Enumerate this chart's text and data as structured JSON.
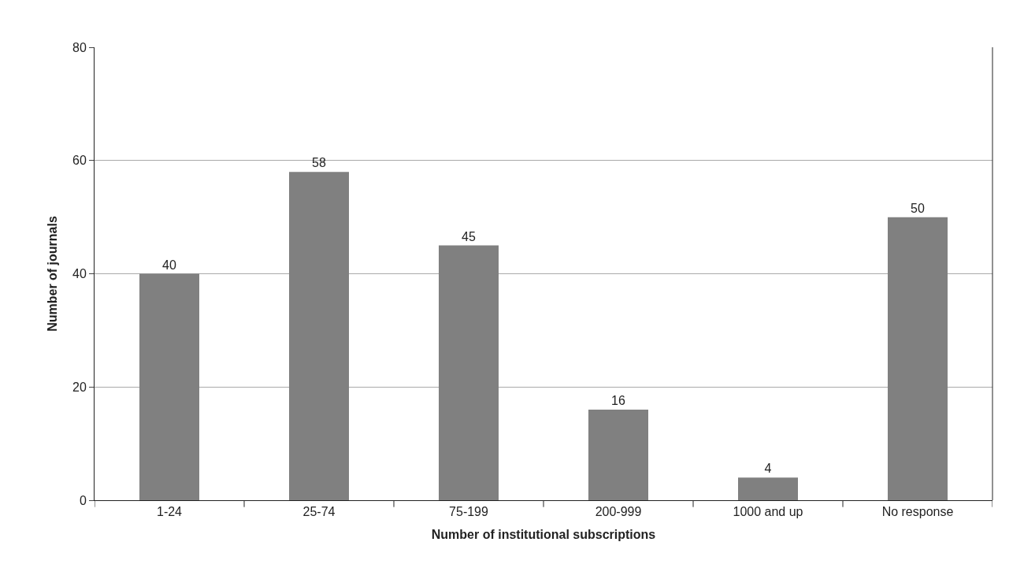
{
  "chart_data": {
    "type": "bar",
    "xlabel": "Number of institutional subscriptions",
    "ylabel": "Number of journals",
    "categories": [
      "1-24",
      "25-74",
      "75-199",
      "200-999",
      "1000 and up",
      "No response"
    ],
    "values": [
      40,
      58,
      45,
      16,
      4,
      50
    ],
    "color": "#808080",
    "ylim": [
      0,
      80
    ],
    "yticks": [
      0,
      20,
      40,
      60,
      80
    ],
    "grid": "y",
    "data_labels": true
  }
}
